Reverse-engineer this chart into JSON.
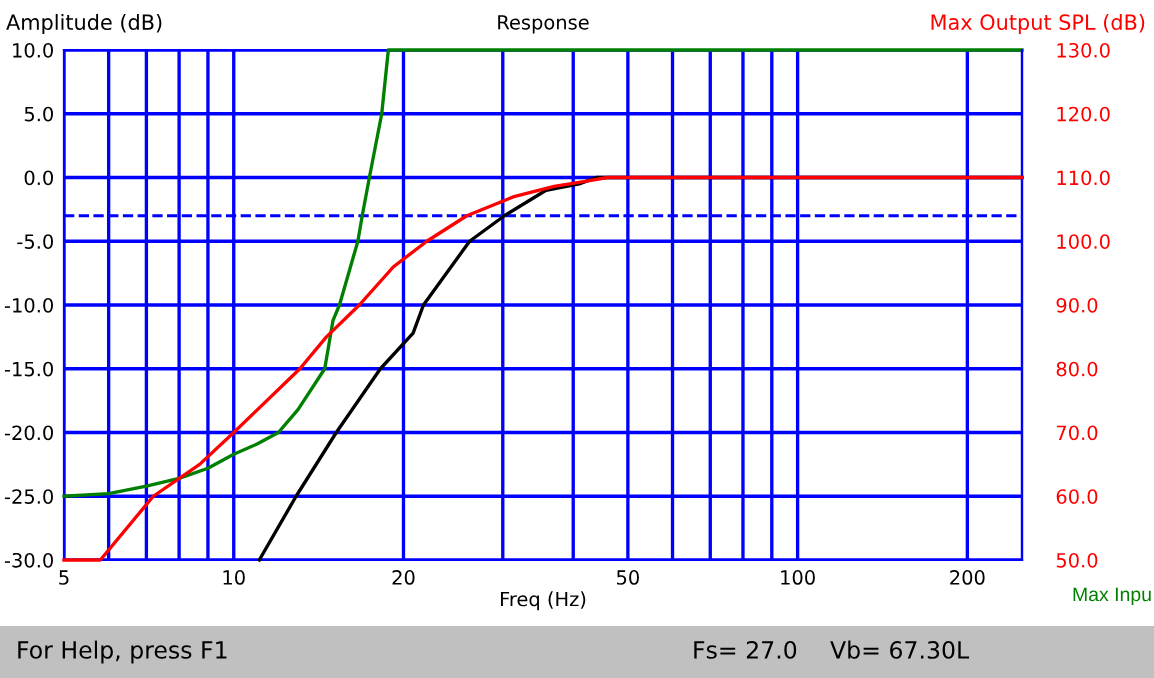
{
  "chart_data": {
    "type": "line",
    "title": "Response",
    "xlabel": "Freq (Hz)",
    "ylabel": "Amplitude (dB)",
    "y2label": "Max Output SPL (dB)",
    "log": "x",
    "grid": true,
    "marker": "none",
    "line_style": "solid",
    "xlim": [
      5,
      250
    ],
    "xticks": [
      5,
      {
        "value": 6,
        "label": null
      },
      {
        "value": 7,
        "label": null
      },
      {
        "value": 8,
        "label": null
      },
      {
        "value": 9,
        "label": null
      },
      10,
      20,
      {
        "value": 30,
        "label": null
      },
      {
        "value": 40,
        "label": null
      },
      50,
      {
        "value": 60,
        "label": null
      },
      {
        "value": 70,
        "label": null
      },
      {
        "value": 80,
        "label": null
      },
      {
        "value": 90,
        "label": null
      },
      100,
      200
    ],
    "ylim": [
      -30,
      10
    ],
    "yticks": [
      {
        "value": -30,
        "label": "-30.0"
      },
      {
        "value": -25,
        "label": "-25.0"
      },
      {
        "value": -20,
        "label": "-20.0"
      },
      {
        "value": -15,
        "label": "-15.0"
      },
      {
        "value": -10,
        "label": "-10.0"
      },
      {
        "value": -5,
        "label": "-5.0"
      },
      {
        "value": 0,
        "label": "0.0"
      },
      {
        "value": 5,
        "label": "5.0"
      },
      {
        "value": 10,
        "label": "10.0"
      }
    ],
    "y2lim": [
      50,
      130
    ],
    "y2ticks": [
      {
        "value": 50,
        "label": "50.0"
      },
      {
        "value": 60,
        "label": "60.0"
      },
      {
        "value": 70,
        "label": "70.0"
      },
      {
        "value": 80,
        "label": "80.0"
      },
      {
        "value": 90,
        "label": "90.0"
      },
      {
        "value": 100,
        "label": "100.0"
      },
      {
        "value": 110,
        "label": "110.0"
      },
      {
        "value": 120,
        "label": "120.0"
      },
      {
        "value": 130,
        "label": "130.0"
      }
    ],
    "ref_lines": [
      {
        "axis": "y",
        "value": -3,
        "color": "#0000ff",
        "line_style": "dashed"
      }
    ],
    "series": [
      {
        "color": "#008000",
        "x": [
          5,
          6,
          7,
          8,
          9,
          10,
          11,
          12,
          13,
          14.5,
          15.0,
          15.4,
          16.6,
          16.9,
          17.4,
          18.3,
          18.8,
          250
        ],
        "values": [
          -25,
          -24.8,
          -24.2,
          -23.6,
          -22.8,
          -21.7,
          -20.9,
          -20,
          -18.2,
          -15,
          -11.2,
          -10,
          -5,
          -3,
          0,
          5,
          10,
          10
        ]
      },
      {
        "color": "#000000",
        "x": [
          11.1,
          12.9,
          15.2,
          18.2,
          20.8,
          21.7,
          26.2,
          30.2,
          35.8,
          41,
          44,
          250
        ],
        "values": [
          -30,
          -25,
          -20,
          -15,
          -12.2,
          -10,
          -5,
          -3,
          -1,
          -0.5,
          0,
          0
        ]
      },
      {
        "color": "#ff0000",
        "axis": "y2",
        "x": [
          5,
          5.8,
          7.2,
          8.7,
          10,
          13.1,
          14.6,
          16.7,
          19.2,
          22,
          25.9,
          31.4,
          37,
          42,
          46,
          250
        ],
        "values": [
          50,
          50,
          60,
          65,
          70,
          80,
          85,
          90,
          96,
          100,
          104,
          107,
          108.6,
          109.4,
          110,
          110
        ]
      }
    ],
    "annotations": [
      "Max Inpu",
      "For Help, press F1",
      "Fs= 27.0",
      "Vb= 67.30L"
    ]
  }
}
